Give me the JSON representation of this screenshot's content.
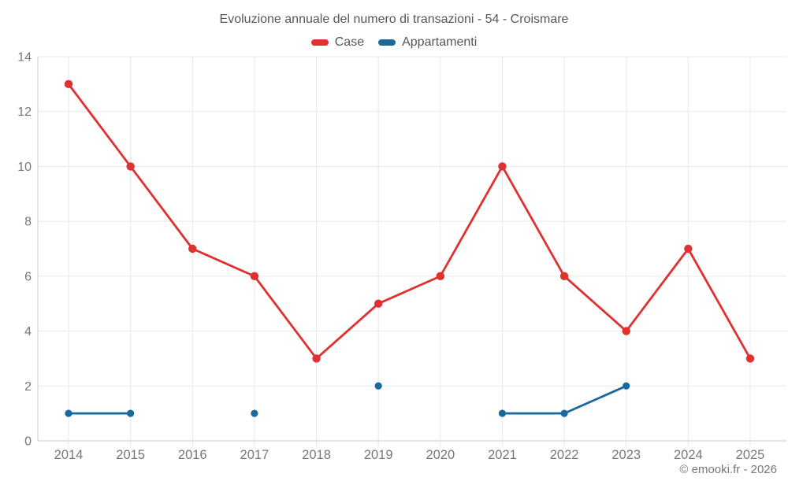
{
  "title": "Evoluzione annuale del numero di transazioni - 54 - Croismare",
  "footer": "© emooki.fr - 2026",
  "colors": {
    "case": "#e03030",
    "appartamenti": "#17699e",
    "grid": "#e8e8e8",
    "axis": "#c9c9c9",
    "tick_label": "#75787b",
    "title_text": "#55575a"
  },
  "chart_data": {
    "type": "line",
    "title": "Evoluzione annuale del numero di transazioni - 54 - Croismare",
    "categories": [
      "2014",
      "2015",
      "2016",
      "2017",
      "2018",
      "2019",
      "2020",
      "2021",
      "2022",
      "2023",
      "2024",
      "2025"
    ],
    "series": [
      {
        "name": "Case",
        "color": "#e03030",
        "values": [
          13,
          10,
          7,
          6,
          3,
          5,
          6,
          10,
          6,
          4,
          7,
          3
        ]
      },
      {
        "name": "Appartamenti",
        "color": "#17699e",
        "values": [
          1,
          1,
          null,
          1,
          null,
          2,
          null,
          1,
          1,
          2,
          null,
          null
        ]
      }
    ],
    "xlabel": "",
    "ylabel": "",
    "ylim": [
      0,
      14
    ],
    "yticks": [
      0,
      2,
      4,
      6,
      8,
      10,
      12,
      14
    ],
    "grid": true,
    "legend_position": "top",
    "gap_handling": "missing years are not connected"
  }
}
